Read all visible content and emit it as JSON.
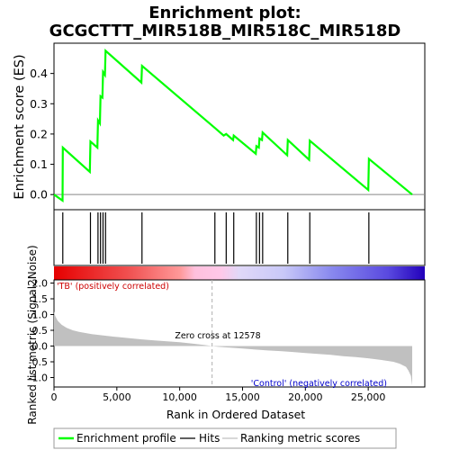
{
  "title_line1": "Enrichment plot:",
  "title_line2": "GCGCTTT_MIR518B_MIR518C_MIR518D",
  "colors": {
    "es_line": "#00ff00",
    "hits": "#000000",
    "metric_fill": "#c0c0c0",
    "zero_cross": "#b0b0b0",
    "pos_label": "#cc0000",
    "neg_label": "#0000cc"
  },
  "chart_data": [
    {
      "type": "line",
      "name": "enrichment-profile",
      "ylabel": "Enrichment score (ES)",
      "xlim": [
        0,
        29500
      ],
      "ylim": [
        -0.05,
        0.5
      ],
      "yticks": [
        0.0,
        0.1,
        0.2,
        0.3,
        0.4
      ],
      "ytick_labels": [
        "0.0",
        "0.1",
        "0.2",
        "0.3",
        "0.4"
      ],
      "x": [
        0,
        680,
        700,
        2850,
        2900,
        3450,
        3500,
        3650,
        3700,
        3850,
        3900,
        4050,
        4100,
        6950,
        7000,
        12800,
        13500,
        13700,
        14250,
        14300,
        16050,
        16100,
        16300,
        16350,
        16550,
        16600,
        18550,
        18600,
        20300,
        20350,
        25000,
        25050,
        28500
      ],
      "y": [
        0.0,
        -0.02,
        0.155,
        0.075,
        0.175,
        0.155,
        0.245,
        0.235,
        0.325,
        0.32,
        0.405,
        0.395,
        0.475,
        0.37,
        0.425,
        0.22,
        0.195,
        0.2,
        0.18,
        0.195,
        0.135,
        0.16,
        0.155,
        0.185,
        0.18,
        0.205,
        0.13,
        0.18,
        0.115,
        0.178,
        0.015,
        0.118,
        0.0
      ]
    },
    {
      "type": "bar",
      "name": "hits",
      "xlim": [
        0,
        29500
      ],
      "x": [
        700,
        2900,
        3500,
        3700,
        3900,
        4100,
        7000,
        12800,
        13700,
        14300,
        16100,
        16350,
        16600,
        18600,
        20350,
        25050
      ]
    },
    {
      "type": "area",
      "name": "ranked-list-metric",
      "ylabel": "Ranked list metric (Signal2Noise)",
      "xlabel": "Rank in Ordered Dataset",
      "xlim": [
        0,
        29500
      ],
      "ylim": [
        -1.3,
        2.1
      ],
      "yticks": [
        -1.0,
        -0.5,
        0.0,
        0.5,
        1.0,
        1.5,
        2.0
      ],
      "ytick_labels": [
        "-1.0",
        "-0.5",
        "0.0",
        "0.5",
        "1.0",
        "1.5",
        "2.0"
      ],
      "xticks": [
        0,
        5000,
        10000,
        15000,
        20000,
        25000
      ],
      "xtick_labels": [
        "0",
        "5,000",
        "10,000",
        "15,000",
        "20,000",
        "25,000"
      ],
      "x": [
        0,
        100,
        300,
        600,
        1000,
        1500,
        2000,
        3000,
        4000,
        5000,
        6000,
        7000,
        8000,
        9000,
        10000,
        11000,
        12000,
        12578,
        13000,
        14000,
        15000,
        16000,
        17000,
        18000,
        19000,
        20000,
        21000,
        22000,
        23000,
        24000,
        25000,
        26000,
        27000,
        27500,
        28000,
        28200,
        28400,
        28500
      ],
      "y": [
        1.1,
        0.95,
        0.8,
        0.68,
        0.58,
        0.5,
        0.45,
        0.38,
        0.33,
        0.29,
        0.25,
        0.21,
        0.18,
        0.15,
        0.12,
        0.08,
        0.03,
        0.0,
        -0.02,
        -0.05,
        -0.08,
        -0.11,
        -0.14,
        -0.16,
        -0.19,
        -0.22,
        -0.25,
        -0.28,
        -0.32,
        -0.35,
        -0.39,
        -0.44,
        -0.5,
        -0.56,
        -0.66,
        -0.78,
        -0.95,
        -1.25
      ]
    }
  ],
  "zero_cross": {
    "x": 12578,
    "label": "Zero cross at 12578"
  },
  "pos_label": "'TB' (positively correlated)",
  "neg_label": "'Control' (negatively correlated)",
  "legend": {
    "items": [
      {
        "label": "Enrichment profile",
        "color": "#00ff00"
      },
      {
        "label": "Hits",
        "color": "#000000"
      },
      {
        "label": "Ranking metric scores",
        "color": "#c0c0c0"
      }
    ]
  }
}
